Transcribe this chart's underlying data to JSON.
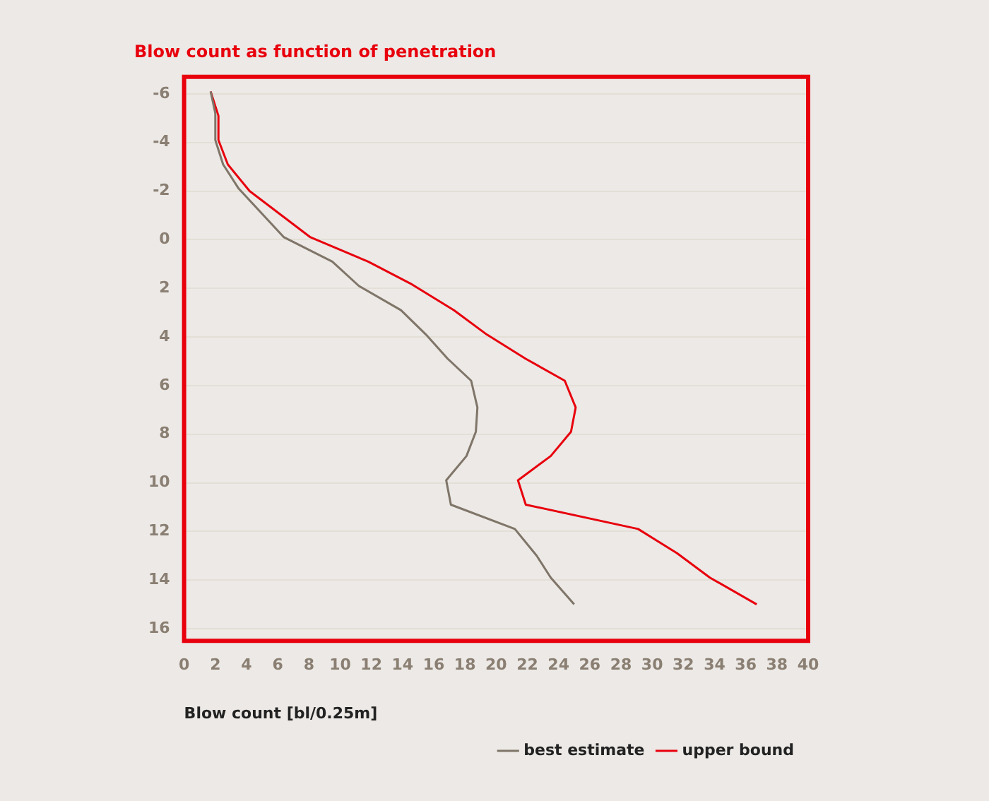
{
  "chart_data": {
    "type": "line",
    "title": "Blow count as function of penetration",
    "xlabel": "Blow count [bl/0.25m]",
    "xlim": [
      0,
      40
    ],
    "xticks": [
      0,
      2,
      4,
      6,
      8,
      10,
      12,
      14,
      16,
      18,
      20,
      22,
      24,
      26,
      28,
      30,
      32,
      34,
      36,
      38,
      40
    ],
    "ylim": [
      16.5,
      -6.7
    ],
    "yticks": [
      -6,
      -4,
      -2,
      0,
      2,
      4,
      6,
      8,
      10,
      12,
      14,
      16
    ],
    "grid": "y",
    "legend": "bottom right",
    "marker": "none",
    "line_style": "solid",
    "series": [
      {
        "name": "best estimate",
        "color": "#7f7568",
        "x": [
          1.7,
          2.0,
          2.0,
          2.5,
          3.5,
          6.4,
          9.5,
          11.2,
          13.9,
          15.5,
          16.9,
          18.4,
          18.8,
          18.7,
          18.1,
          16.8,
          17.1,
          21.2,
          22.6,
          23.5,
          25.0
        ],
        "values": [
          -6.1,
          -5.2,
          -4.1,
          -3.1,
          -2.1,
          -0.1,
          0.9,
          1.9,
          2.9,
          3.9,
          4.9,
          5.8,
          6.9,
          7.9,
          8.9,
          9.9,
          10.9,
          11.9,
          13.0,
          13.9,
          15.0
        ]
      },
      {
        "name": "upper bound",
        "color": "#e8000d",
        "x": [
          1.7,
          2.2,
          2.2,
          2.8,
          4.2,
          8.1,
          11.8,
          14.5,
          17.3,
          19.4,
          21.9,
          24.4,
          25.1,
          24.8,
          23.5,
          21.4,
          21.9,
          29.1,
          31.6,
          33.7,
          36.7
        ],
        "values": [
          -6.1,
          -5.1,
          -4.1,
          -3.1,
          -2.0,
          -0.1,
          0.9,
          1.8,
          2.9,
          3.9,
          4.9,
          5.8,
          6.9,
          7.9,
          8.9,
          9.9,
          10.9,
          11.9,
          12.9,
          13.9,
          15.0
        ]
      }
    ]
  }
}
